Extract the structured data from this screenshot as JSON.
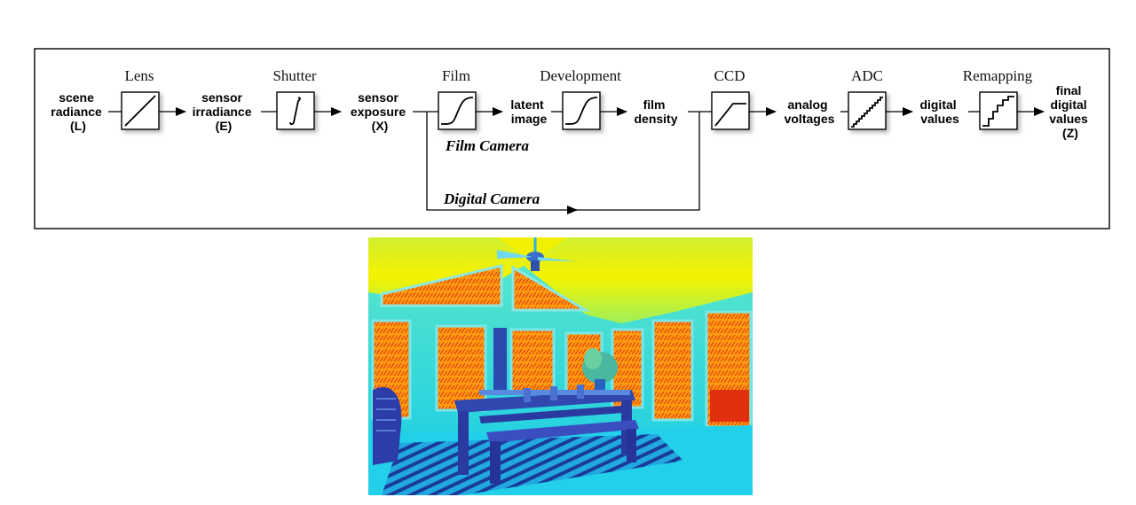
{
  "stages": {
    "lens": "Lens",
    "shutter": "Shutter",
    "film": "Film",
    "development": "Development",
    "ccd": "CCD",
    "adc": "ADC",
    "remapping": "Remapping"
  },
  "signals": {
    "scene_radiance": [
      "scene",
      "radiance",
      "(L)"
    ],
    "sensor_irradiance": [
      "sensor",
      "irradiance",
      "(E)"
    ],
    "sensor_exposure": [
      "sensor",
      "exposure",
      "(X)"
    ],
    "latent_image": [
      "latent",
      "image"
    ],
    "film_density": [
      "film",
      "density"
    ],
    "analog_voltages": [
      "analog",
      "voltages"
    ],
    "digital_values": [
      "digital",
      "values"
    ],
    "final_digital_values": [
      "final",
      "digital",
      "values",
      "(Z)"
    ]
  },
  "paths": {
    "film_camera": "Film Camera",
    "digital_camera": "Digital Camera"
  },
  "photo": {
    "colormap": "jet false-color",
    "colors": {
      "ceiling_hot": "#f4f000",
      "ceiling_warm": "#c8f53a",
      "walls": "#17d2e6",
      "windows": "#ff9a10",
      "windows_hot": "#e02a10",
      "furniture": "#2c3ca8",
      "floor": "#1ed0e8"
    }
  }
}
